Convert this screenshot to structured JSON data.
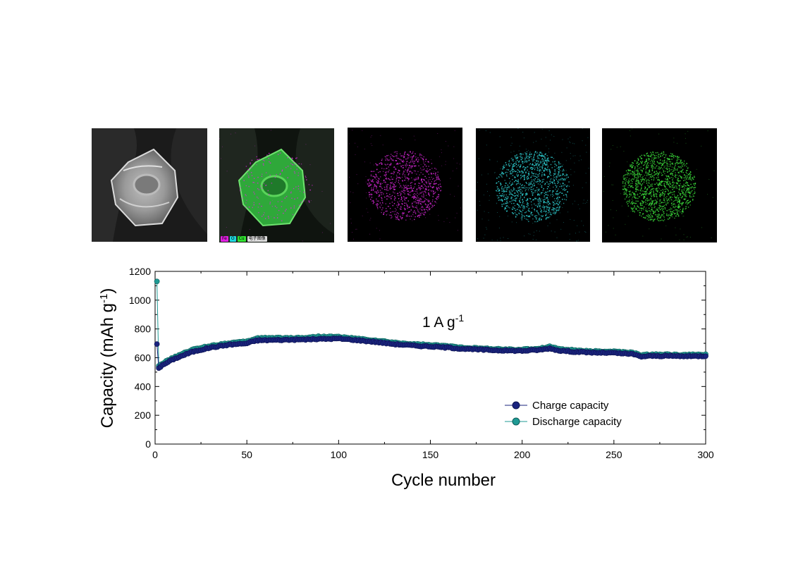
{
  "micrographs": {
    "map_legend": {
      "fe": "Fe",
      "o": "O",
      "cu": "Cu",
      "electron_image": "电子图像"
    },
    "colors": {
      "fe": "#d928d9",
      "o": "#2fd3d6",
      "cu": "#3ce03c",
      "sem": "#cfcfcf"
    }
  },
  "chart_data": {
    "type": "scatter",
    "xlabel": "Cycle number",
    "ylabel_main": "Capacity (mAh g",
    "ylabel_sup": "-1",
    "ylabel_close": ")",
    "annotation": {
      "main": "1 A g",
      "sup": "-1"
    },
    "xlim": [
      0,
      300
    ],
    "ylim": [
      0,
      1200
    ],
    "xticks": [
      0,
      50,
      100,
      150,
      200,
      250,
      300
    ],
    "yticks": [
      0,
      200,
      400,
      600,
      800,
      1000,
      1200
    ],
    "legend_position": "bottom-right",
    "series": [
      {
        "name": "Charge capacity",
        "color": "#1a237e",
        "first_point": [
          1,
          695
        ],
        "anchors": [
          [
            2,
            530
          ],
          [
            5,
            555
          ],
          [
            10,
            590
          ],
          [
            20,
            640
          ],
          [
            30,
            670
          ],
          [
            40,
            690
          ],
          [
            50,
            700
          ],
          [
            55,
            720
          ],
          [
            60,
            722
          ],
          [
            70,
            724
          ],
          [
            80,
            726
          ],
          [
            90,
            730
          ],
          [
            100,
            733
          ],
          [
            110,
            722
          ],
          [
            120,
            710
          ],
          [
            130,
            695
          ],
          [
            140,
            685
          ],
          [
            150,
            678
          ],
          [
            160,
            670
          ],
          [
            170,
            660
          ],
          [
            180,
            655
          ],
          [
            190,
            650
          ],
          [
            200,
            648
          ],
          [
            210,
            655
          ],
          [
            215,
            665
          ],
          [
            220,
            650
          ],
          [
            230,
            640
          ],
          [
            240,
            635
          ],
          [
            250,
            633
          ],
          [
            260,
            625
          ],
          [
            265,
            608
          ],
          [
            270,
            612
          ],
          [
            280,
            612
          ],
          [
            290,
            610
          ],
          [
            300,
            612
          ]
        ]
      },
      {
        "name": "Discharge capacity",
        "color": "#1f9a94",
        "first_point": [
          1,
          1130
        ],
        "anchors": [
          [
            2,
            545
          ],
          [
            5,
            568
          ],
          [
            10,
            600
          ],
          [
            20,
            655
          ],
          [
            30,
            683
          ],
          [
            40,
            702
          ],
          [
            50,
            712
          ],
          [
            55,
            735
          ],
          [
            60,
            738
          ],
          [
            70,
            737
          ],
          [
            80,
            738
          ],
          [
            90,
            748
          ],
          [
            100,
            745
          ],
          [
            110,
            732
          ],
          [
            120,
            720
          ],
          [
            130,
            705
          ],
          [
            140,
            695
          ],
          [
            150,
            688
          ],
          [
            160,
            680
          ],
          [
            170,
            670
          ],
          [
            180,
            663
          ],
          [
            190,
            658
          ],
          [
            200,
            656
          ],
          [
            210,
            665
          ],
          [
            215,
            678
          ],
          [
            220,
            662
          ],
          [
            230,
            650
          ],
          [
            240,
            645
          ],
          [
            250,
            643
          ],
          [
            260,
            635
          ],
          [
            265,
            618
          ],
          [
            270,
            622
          ],
          [
            280,
            622
          ],
          [
            290,
            620
          ],
          [
            300,
            622
          ]
        ]
      }
    ]
  }
}
